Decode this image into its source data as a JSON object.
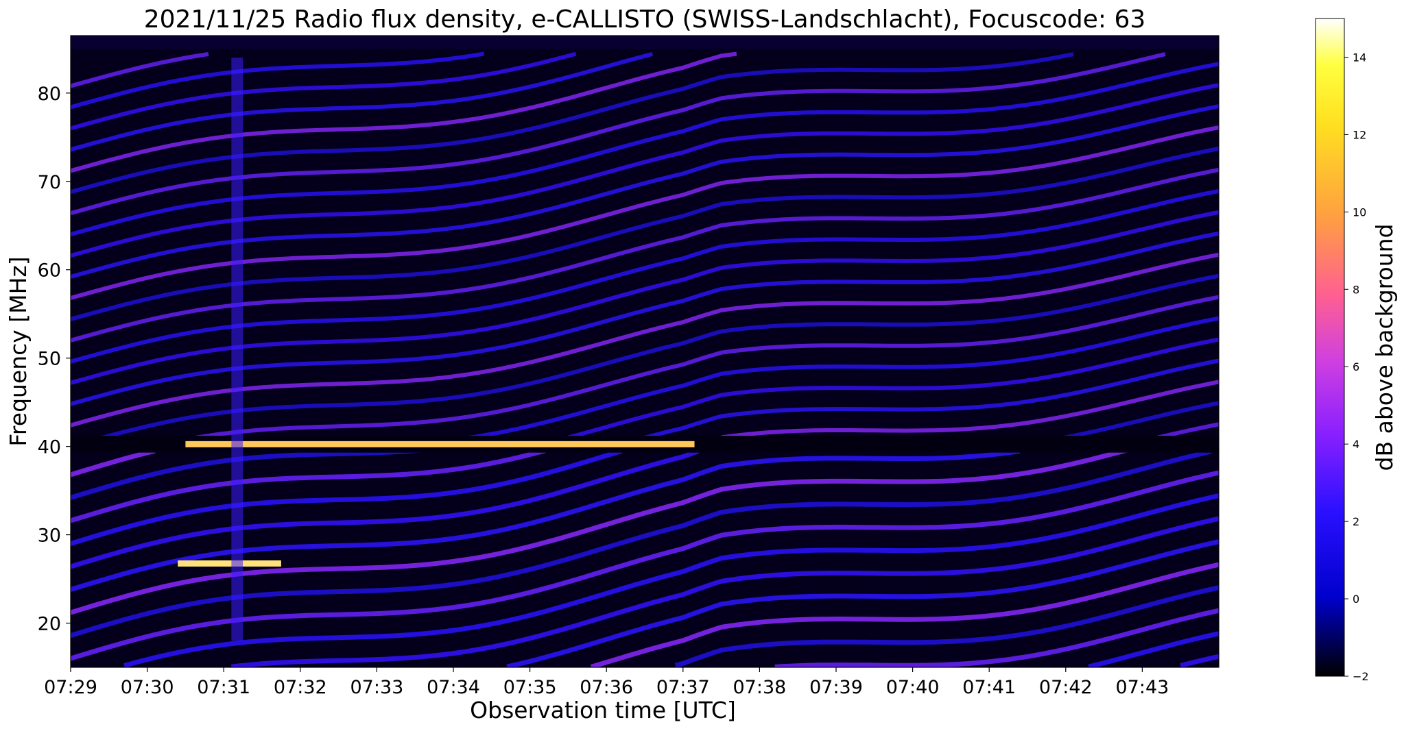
{
  "chart_data": {
    "type": "heatmap",
    "title": "2021/11/25  Radio flux density, e-CALLISTO (SWISS-Landschlacht), Focuscode: 63",
    "xlabel": "Observation time [UTC]",
    "ylabel": "Frequency [MHz]",
    "colorbar_label": "dB above background",
    "x_range_minutes": [
      0,
      15
    ],
    "x_ticks": [
      "07:29",
      "07:30",
      "07:31",
      "07:32",
      "07:33",
      "07:34",
      "07:35",
      "07:36",
      "07:37",
      "07:38",
      "07:39",
      "07:40",
      "07:41",
      "07:42",
      "07:43"
    ],
    "y_range_mhz": [
      15,
      86.5
    ],
    "y_ticks": [
      20,
      30,
      40,
      50,
      60,
      70,
      80
    ],
    "colorbar_range": [
      -2,
      15
    ],
    "colorbar_ticks": [
      -2,
      0,
      2,
      4,
      6,
      8,
      10,
      12,
      14
    ],
    "colormap": [
      "#000000",
      "#0000cc",
      "#2a10ff",
      "#8a20ff",
      "#d040e0",
      "#ff6090",
      "#ffa040",
      "#ffe020",
      "#ffff40",
      "#ffffff"
    ],
    "features": {
      "narrowband_interference_mhz": 40.2,
      "interference_end_minute": 8.15,
      "upper_band_edge_mhz": 85
    }
  }
}
